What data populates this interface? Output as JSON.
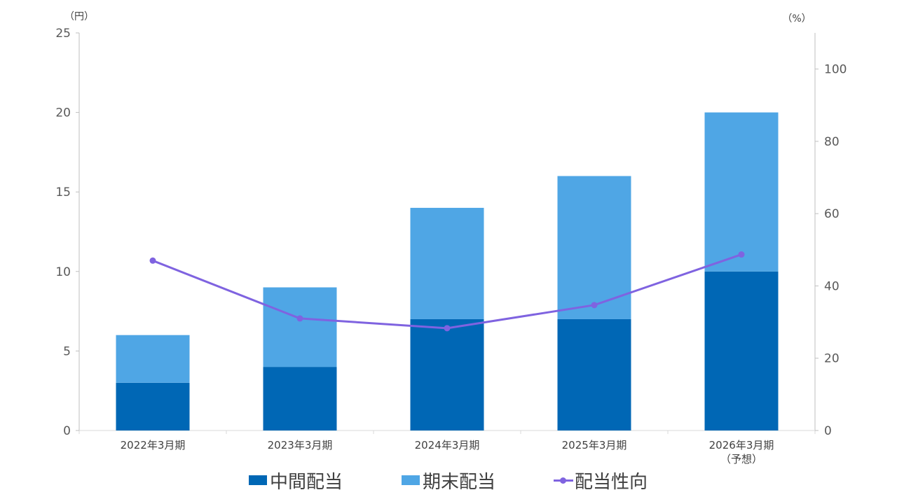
{
  "chart_data": {
    "type": "bar",
    "stacked": true,
    "categories": [
      "2022年3月期",
      "2023年3月期",
      "2024年3月期",
      "2025年3月期",
      "2026年3月期"
    ],
    "category_notes": [
      "",
      "",
      "",
      "",
      "（予想）"
    ],
    "series": [
      {
        "name": "中間配当",
        "type": "bar",
        "axis": "left",
        "color": "#0067b5",
        "values": [
          3,
          4,
          7,
          7,
          10
        ]
      },
      {
        "name": "期末配当",
        "type": "bar",
        "axis": "left",
        "color": "#4fa6e5",
        "values": [
          3,
          5,
          7,
          9,
          10
        ]
      },
      {
        "name": "配当性向",
        "type": "line",
        "axis": "right",
        "color": "#7f63e0",
        "values": [
          47,
          31,
          28.3,
          34.7,
          48.7
        ]
      }
    ],
    "y_left": {
      "unit": "（円）",
      "ylim": [
        0,
        25
      ],
      "ticks": [
        0,
        5,
        10,
        15,
        20,
        25
      ]
    },
    "y_right": {
      "unit": "（%）",
      "ylim": [
        0,
        110
      ],
      "ticks": [
        0,
        20,
        40,
        60,
        80,
        100
      ]
    },
    "grid": false,
    "legend_position": "bottom"
  }
}
